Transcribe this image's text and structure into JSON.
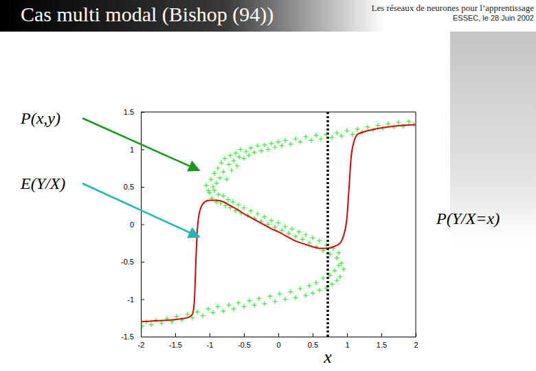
{
  "chart_data": {
    "type": "scatter",
    "title": "Cas multi modal (Bishop (94))",
    "subtitle": [
      "Les réseaux de neurones pour l’apprentissage",
      "ESSEC, le 28 Juin 2002"
    ],
    "xlim": [
      -2,
      2
    ],
    "ylim": [
      -1.5,
      1.5
    ],
    "xticks": [
      -2,
      -1.5,
      -1,
      -0.5,
      0,
      0.5,
      1,
      1.5,
      2
    ],
    "yticks": [
      -1.5,
      -1,
      -0.5,
      0,
      0.5,
      1,
      1.5
    ],
    "grid": false,
    "series": [
      {
        "name": "P(x,y)",
        "type": "scatter",
        "color": "#33ee33",
        "marker": "plus",
        "x": [
          -1.05,
          -1.02,
          -0.98,
          -0.95,
          -0.93,
          -0.9,
          -0.88,
          -0.85,
          -0.83,
          -0.8,
          -0.78,
          -0.75,
          -0.72,
          -0.7,
          -0.68,
          -0.65,
          -0.62,
          -0.6,
          -0.57,
          -0.55,
          -0.5,
          -0.47,
          -0.43,
          -0.4,
          -0.35,
          -0.3,
          -0.25,
          -0.2,
          -0.15,
          -0.1,
          -0.05,
          0,
          0.05,
          0.1,
          0.18,
          0.25,
          0.32,
          0.4,
          0.48,
          0.55,
          0.62,
          0.7,
          0.78,
          0.85,
          0.92,
          1,
          1.08,
          1.15,
          1.22,
          1.3,
          1.38,
          1.45,
          1.52,
          1.6,
          1.68,
          1.75,
          1.82,
          1.9,
          1.97,
          -1,
          -0.97,
          -0.93,
          -0.9,
          -0.87,
          -0.84,
          -0.8,
          -0.77,
          -0.73,
          -0.7,
          -0.66,
          -0.62,
          -0.58,
          -0.54,
          -0.5,
          -0.45,
          -0.4,
          -0.35,
          -0.3,
          -0.25,
          -0.2,
          -0.15,
          -0.1,
          -0.05,
          0,
          0.05,
          0.1,
          0.15,
          0.2,
          0.25,
          0.3,
          0.35,
          0.4,
          0.45,
          0.5,
          0.55,
          0.6,
          0.65,
          0.7,
          0.75,
          0.8,
          0.85,
          0.88,
          0.92,
          0.95,
          0.9,
          0.88,
          0.85,
          0.82,
          0.78,
          0.75,
          0.7,
          0.65,
          0.6,
          0.55,
          0.5,
          0.45,
          0.4,
          0.32,
          0.25,
          0.18,
          0.1,
          0.02,
          -0.05,
          -0.12,
          -0.2,
          -0.28,
          -0.35,
          -0.42,
          -0.5,
          -0.58,
          -0.65,
          -0.72,
          -0.8,
          -0.88,
          -0.95,
          -1.02,
          -1.1,
          -1.18,
          -1.25,
          -1.32,
          -1.4,
          -1.48,
          -1.55,
          -1.62,
          -1.7,
          -1.78,
          -1.85,
          -1.92,
          -1.98
        ],
        "values": [
          0.52,
          0.45,
          0.6,
          0.5,
          0.68,
          0.55,
          0.75,
          0.62,
          0.82,
          0.7,
          0.88,
          0.6,
          0.8,
          0.92,
          0.72,
          0.85,
          0.95,
          0.78,
          0.9,
          1,
          0.88,
          0.97,
          0.92,
          1.02,
          0.96,
          1.05,
          0.98,
          1.06,
          1,
          1.08,
          1.03,
          1.1,
          1.05,
          1.12,
          1.07,
          1.14,
          1.1,
          1.17,
          1.12,
          1.19,
          1.14,
          1.2,
          1.16,
          1.22,
          1.18,
          1.25,
          1.2,
          1.27,
          1.23,
          1.3,
          1.26,
          1.32,
          1.28,
          1.34,
          1.3,
          1.36,
          1.31,
          1.37,
          1.33,
          0.42,
          0.35,
          0.45,
          0.3,
          0.4,
          0.28,
          0.38,
          0.25,
          0.33,
          0.22,
          0.3,
          0.18,
          0.26,
          0.15,
          0.22,
          0.12,
          0.18,
          0.08,
          0.14,
          0.04,
          0.1,
          0,
          0.05,
          -0.04,
          0.02,
          -0.08,
          -0.03,
          -0.12,
          -0.06,
          -0.16,
          -0.1,
          -0.2,
          -0.14,
          -0.25,
          -0.18,
          -0.3,
          -0.22,
          -0.35,
          -0.28,
          -0.4,
          -0.32,
          -0.45,
          -0.38,
          -0.52,
          -0.6,
          -0.7,
          -0.55,
          -0.75,
          -0.62,
          -0.8,
          -0.68,
          -0.85,
          -0.72,
          -0.88,
          -0.78,
          -0.92,
          -0.82,
          -0.95,
          -0.86,
          -0.98,
          -0.9,
          -1,
          -0.93,
          -1.03,
          -0.96,
          -1.06,
          -0.99,
          -1.08,
          -1.02,
          -1.1,
          -1.05,
          -1.13,
          -1.08,
          -1.16,
          -1.1,
          -1.18,
          -1.13,
          -1.22,
          -1.17,
          -1.25,
          -1.2,
          -1.28,
          -1.23,
          -1.3,
          -1.26,
          -1.32,
          -1.28,
          -1.34,
          -1.3,
          -1.36
        ]
      },
      {
        "name": "E(Y/X)",
        "type": "line",
        "color": "#dd0000",
        "line_style": "solid",
        "x": [
          -2,
          -1.8,
          -1.6,
          -1.4,
          -1.3,
          -1.25,
          -1.22,
          -1.2,
          -1.18,
          -1.15,
          -1.1,
          -1.05,
          -1,
          -0.9,
          -0.8,
          -0.7,
          -0.6,
          -0.5,
          -0.4,
          -0.3,
          -0.2,
          -0.1,
          0,
          0.1,
          0.2,
          0.3,
          0.4,
          0.5,
          0.6,
          0.7,
          0.8,
          0.9,
          0.95,
          1,
          1.03,
          1.06,
          1.1,
          1.15,
          1.2,
          1.3,
          1.4,
          1.6,
          1.8,
          2
        ],
        "values": [
          -1.3,
          -1.29,
          -1.28,
          -1.26,
          -1.24,
          -1.2,
          -1,
          -0.5,
          -0.1,
          0.15,
          0.27,
          0.31,
          0.32,
          0.32,
          0.3,
          0.25,
          0.2,
          0.14,
          0.09,
          0.04,
          -0.01,
          -0.06,
          -0.1,
          -0.15,
          -0.2,
          -0.24,
          -0.27,
          -0.3,
          -0.32,
          -0.32,
          -0.3,
          -0.25,
          -0.15,
          0.1,
          0.5,
          0.9,
          1.1,
          1.2,
          1.22,
          1.25,
          1.27,
          1.3,
          1.32,
          1.33
        ]
      }
    ],
    "annotations": [
      {
        "text": "P(Y/X=x)"
      },
      {
        "text": "x",
        "x": 0.72,
        "line_style": "dotted"
      }
    ]
  }
}
